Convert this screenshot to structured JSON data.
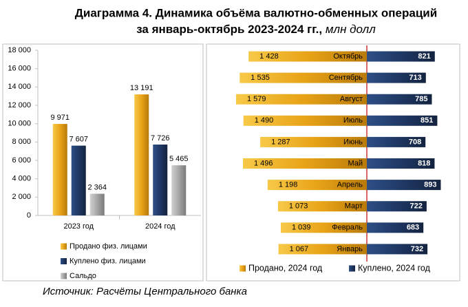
{
  "title_line1": "Диаграмма 4. Динамика объёма валютно-обменных операций",
  "title_line2": "за январь-октябрь 2023-2024 гг.,",
  "title_unit": "млн долл",
  "source": "Источник: Расчёты Центрального банка",
  "chart_data": [
    {
      "type": "bar",
      "categories": [
        "2023 год",
        "2024 год"
      ],
      "series": [
        {
          "name": "Продано физ. лицами",
          "color": "#e8a317",
          "values": [
            9971,
            13191
          ],
          "value_labels": [
            "9 971",
            "13 191"
          ]
        },
        {
          "name": "Куплено физ. лицами",
          "color": "#1f3864",
          "values": [
            7607,
            7726
          ],
          "value_labels": [
            "7 607",
            "7 726"
          ]
        },
        {
          "name": "Сальдо",
          "color": "#a6a6a6",
          "values": [
            2364,
            5465
          ],
          "value_labels": [
            "2 364",
            "5 465"
          ]
        }
      ],
      "ylim": [
        0,
        18000
      ],
      "yticks": [
        0,
        {
          "value": 2000,
          "label": "2 000"
        },
        {
          "value": 4000,
          "label": "4 000"
        },
        {
          "value": 6000,
          "label": "6 000"
        },
        {
          "value": 8000,
          "label": "8 000"
        },
        {
          "value": 10000,
          "label": "10 000"
        },
        {
          "value": 12000,
          "label": "12 000"
        },
        {
          "value": 14000,
          "label": "14 000"
        },
        {
          "value": 16000,
          "label": "16 000"
        },
        {
          "value": 18000,
          "label": "18 000"
        }
      ],
      "grid": false
    },
    {
      "type": "diverging-bar",
      "categories": [
        "Октябрь",
        "Сентябрь",
        "Август",
        "Июль",
        "Июнь",
        "Май",
        "Апрель",
        "Март",
        "Февраль",
        "Январь"
      ],
      "series": [
        {
          "name": "Продано, 2024 год",
          "color": "#e8a317",
          "values": [
            1428,
            1535,
            1579,
            1490,
            1287,
            1496,
            1198,
            1073,
            1039,
            1067
          ],
          "value_labels": [
            "1 428",
            "1 535",
            "1 579",
            "1 490",
            "1 287",
            "1 496",
            "1 198",
            "1 073",
            "1 039",
            "1 067"
          ]
        },
        {
          "name": "Куплено, 2024 год",
          "color": "#1f3864",
          "values": [
            821,
            713,
            785,
            851,
            708,
            818,
            893,
            722,
            683,
            732
          ]
        }
      ]
    }
  ]
}
